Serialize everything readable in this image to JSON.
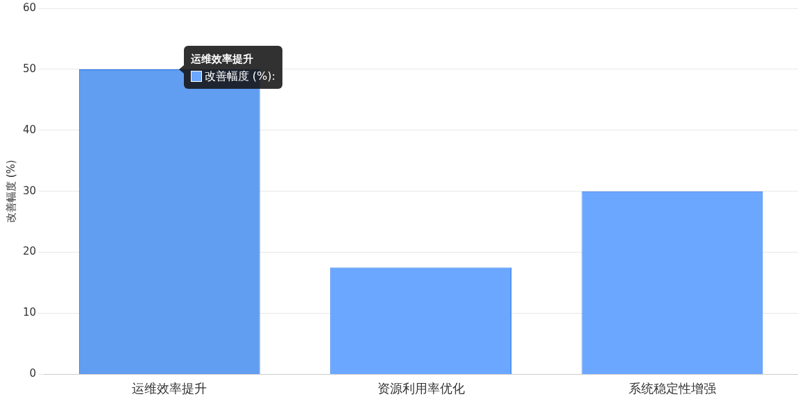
{
  "chart_data": {
    "type": "bar",
    "ylabel": "改善幅度 (%)",
    "categories": [
      "运维效率提升",
      "资源利用率优化",
      "系统稳定性增强"
    ],
    "series": [
      {
        "color": "#6ba7fe",
        "colors": [
          "#619df0",
          "#6ba7fe",
          "#6ba7fe"
        ],
        "values": [
          50,
          17.5,
          30
        ]
      }
    ],
    "ylim": [
      0,
      60
    ],
    "yticks": [
      0,
      10,
      20,
      30,
      40,
      50,
      60
    ],
    "grid": "y",
    "legend": false,
    "annotations": [
      {
        "text": "运维效率提升",
        "x": "运维效率提升",
        "y": 50
      },
      "改善幅度 (%):"
    ]
  }
}
